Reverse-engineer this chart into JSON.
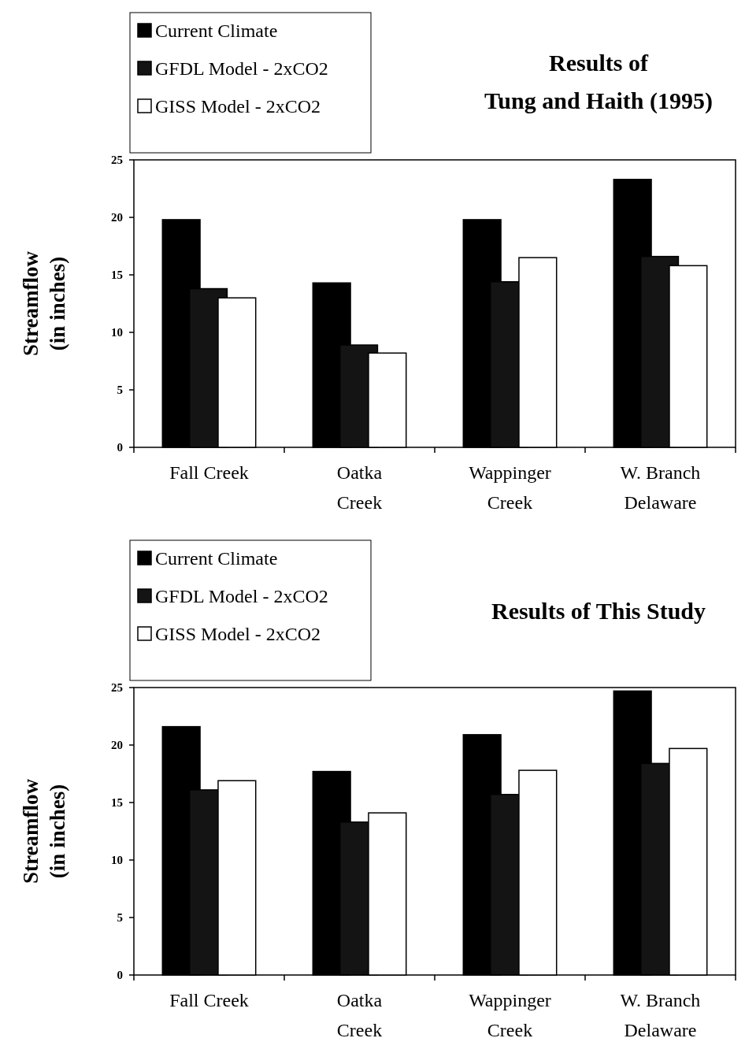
{
  "chart_data": [
    {
      "type": "bar",
      "title": "Results of\nTung and Haith (1995)",
      "ylabel": "Streamflow\n(in inches)",
      "categories": [
        "Fall Creek",
        "Oatka\nCreek",
        "Wappinger\nCreek",
        "W. Branch\nDelaware"
      ],
      "ylim": [
        0,
        25
      ],
      "yticks": [
        0,
        5,
        10,
        15,
        20,
        25
      ],
      "legend": "top left",
      "series": [
        {
          "name": "Current Climate",
          "color": "#000000",
          "values": [
            19.8,
            14.3,
            19.8,
            23.3
          ]
        },
        {
          "name": "GFDL Model - 2xCO2",
          "color": "#141414",
          "values": [
            13.8,
            8.9,
            14.4,
            16.6
          ]
        },
        {
          "name": "GISS Model - 2xCO2",
          "color": "#ffffff",
          "values": [
            13.0,
            8.2,
            16.5,
            15.8
          ]
        }
      ]
    },
    {
      "type": "bar",
      "title": "Results of This Study",
      "ylabel": "Streamflow\n(in inches)",
      "categories": [
        "Fall Creek",
        "Oatka\nCreek",
        "Wappinger\nCreek",
        "W. Branch\nDelaware"
      ],
      "ylim": [
        0,
        25
      ],
      "yticks": [
        0,
        5,
        10,
        15,
        20,
        25
      ],
      "legend": "top left",
      "series": [
        {
          "name": "Current Climate",
          "color": "#000000",
          "values": [
            21.6,
            17.7,
            20.9,
            24.7
          ]
        },
        {
          "name": "GFDL Model - 2xCO2",
          "color": "#141414",
          "values": [
            16.1,
            13.3,
            15.7,
            18.4
          ]
        },
        {
          "name": "GISS Model - 2xCO2",
          "color": "#ffffff",
          "values": [
            16.9,
            14.1,
            17.8,
            19.7
          ]
        }
      ]
    }
  ]
}
